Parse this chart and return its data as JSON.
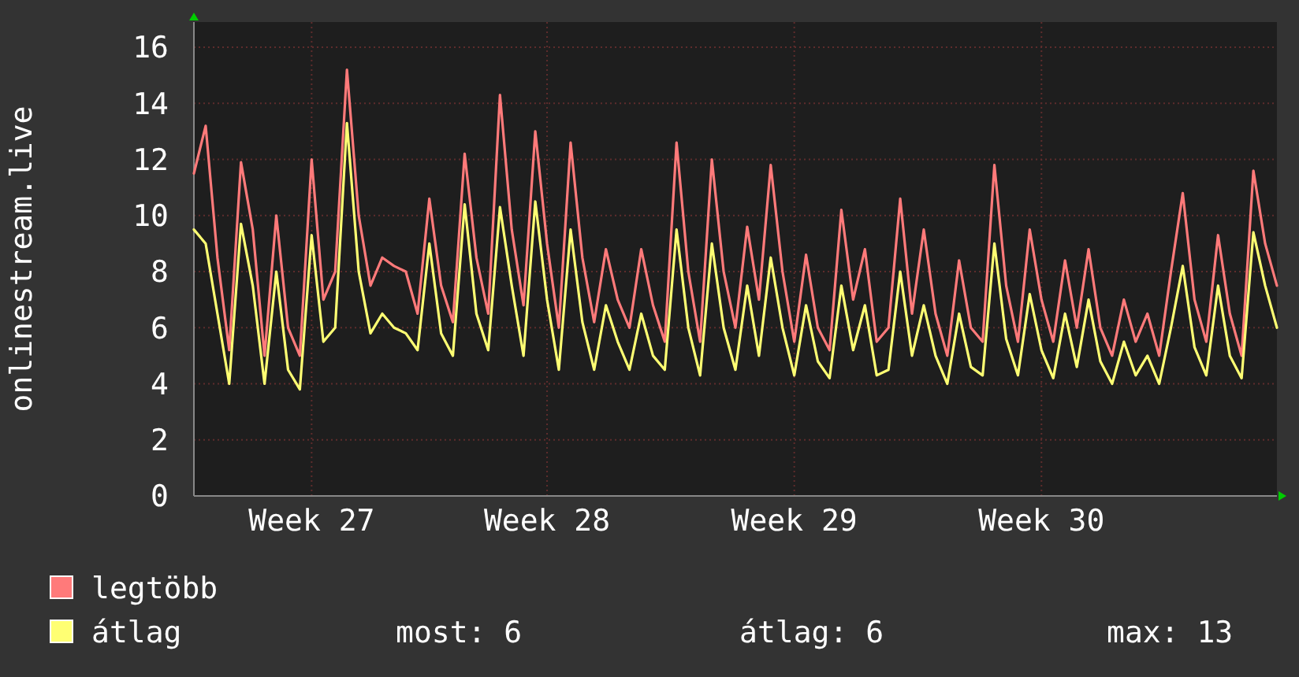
{
  "chart_data": {
    "type": "line",
    "ylabel": "onlinestream.live",
    "categories": [
      null,
      null,
      null,
      null,
      null,
      null,
      null,
      null,
      null,
      null,
      "Week 27",
      null,
      null,
      null,
      null,
      null,
      null,
      null,
      null,
      null,
      null,
      null,
      null,
      null,
      null,
      null,
      null,
      null,
      null,
      null,
      "Week 28",
      null,
      null,
      null,
      null,
      null,
      null,
      null,
      null,
      null,
      null,
      null,
      null,
      null,
      null,
      null,
      null,
      null,
      null,
      null,
      null,
      "Week 29",
      null,
      null,
      null,
      null,
      null,
      null,
      null,
      null,
      null,
      null,
      null,
      null,
      null,
      null,
      null,
      null,
      null,
      null,
      null,
      null,
      "Week 30",
      null,
      null,
      null,
      null,
      null,
      null,
      null,
      null,
      null,
      null,
      null,
      null,
      null,
      null,
      null,
      null,
      null,
      null,
      null,
      null
    ],
    "series": [
      {
        "name": "legtöbb",
        "color": "#ff7a7a",
        "values": [
          11.5,
          13.2,
          8.5,
          5.2,
          11.9,
          9.5,
          5.0,
          10.0,
          6.0,
          5.0,
          12.0,
          7.0,
          8.0,
          15.2,
          10.0,
          7.5,
          8.5,
          8.2,
          8.0,
          6.5,
          10.6,
          7.5,
          6.2,
          12.2,
          8.5,
          6.5,
          14.3,
          9.5,
          6.8,
          13.0,
          9.0,
          6.0,
          12.6,
          8.5,
          6.2,
          8.8,
          7.0,
          6.0,
          8.8,
          6.8,
          5.5,
          12.6,
          8.0,
          5.5,
          12.0,
          8.0,
          6.0,
          9.6,
          7.0,
          11.8,
          8.0,
          5.5,
          8.6,
          6.0,
          5.2,
          10.2,
          7.0,
          8.8,
          5.5,
          6.0,
          10.6,
          6.5,
          9.5,
          6.5,
          5.0,
          8.4,
          6.0,
          5.5,
          11.8,
          7.5,
          5.5,
          9.5,
          7.0,
          5.5,
          8.4,
          6.0,
          8.8,
          6.0,
          5.0,
          7.0,
          5.5,
          6.5,
          5.0,
          8.0,
          10.8,
          7.0,
          5.5,
          9.3,
          6.5,
          5.0,
          11.6,
          9.0,
          7.5
        ]
      },
      {
        "name": "átlag",
        "color": "#ffff73",
        "values": [
          9.5,
          9.0,
          6.5,
          4.0,
          9.7,
          7.5,
          4.0,
          8.0,
          4.5,
          3.8,
          9.3,
          5.5,
          6.0,
          13.3,
          8.0,
          5.8,
          6.5,
          6.0,
          5.8,
          5.2,
          9.0,
          5.8,
          5.0,
          10.4,
          6.5,
          5.2,
          10.3,
          7.5,
          5.0,
          10.5,
          7.0,
          4.5,
          9.5,
          6.2,
          4.5,
          6.8,
          5.5,
          4.5,
          6.5,
          5.0,
          4.5,
          9.5,
          6.0,
          4.3,
          9.0,
          6.0,
          4.5,
          7.5,
          5.0,
          8.5,
          6.0,
          4.3,
          6.8,
          4.8,
          4.2,
          7.5,
          5.2,
          6.8,
          4.3,
          4.5,
          8.0,
          5.0,
          6.8,
          5.0,
          4.0,
          6.5,
          4.6,
          4.3,
          9.0,
          5.6,
          4.3,
          7.2,
          5.2,
          4.2,
          6.5,
          4.6,
          7.0,
          4.8,
          4.0,
          5.5,
          4.3,
          5.0,
          4.0,
          6.0,
          8.2,
          5.3,
          4.3,
          7.5,
          5.0,
          4.2,
          9.4,
          7.5,
          6.0
        ]
      }
    ],
    "ylim": [
      0,
      16.9
    ],
    "yticks": [
      0,
      2,
      4,
      6,
      8,
      10,
      12,
      14,
      16
    ],
    "grid": true,
    "legend": "bottom",
    "annotations": [
      "most: 6",
      "átlag: 6",
      "max: 13"
    ]
  }
}
